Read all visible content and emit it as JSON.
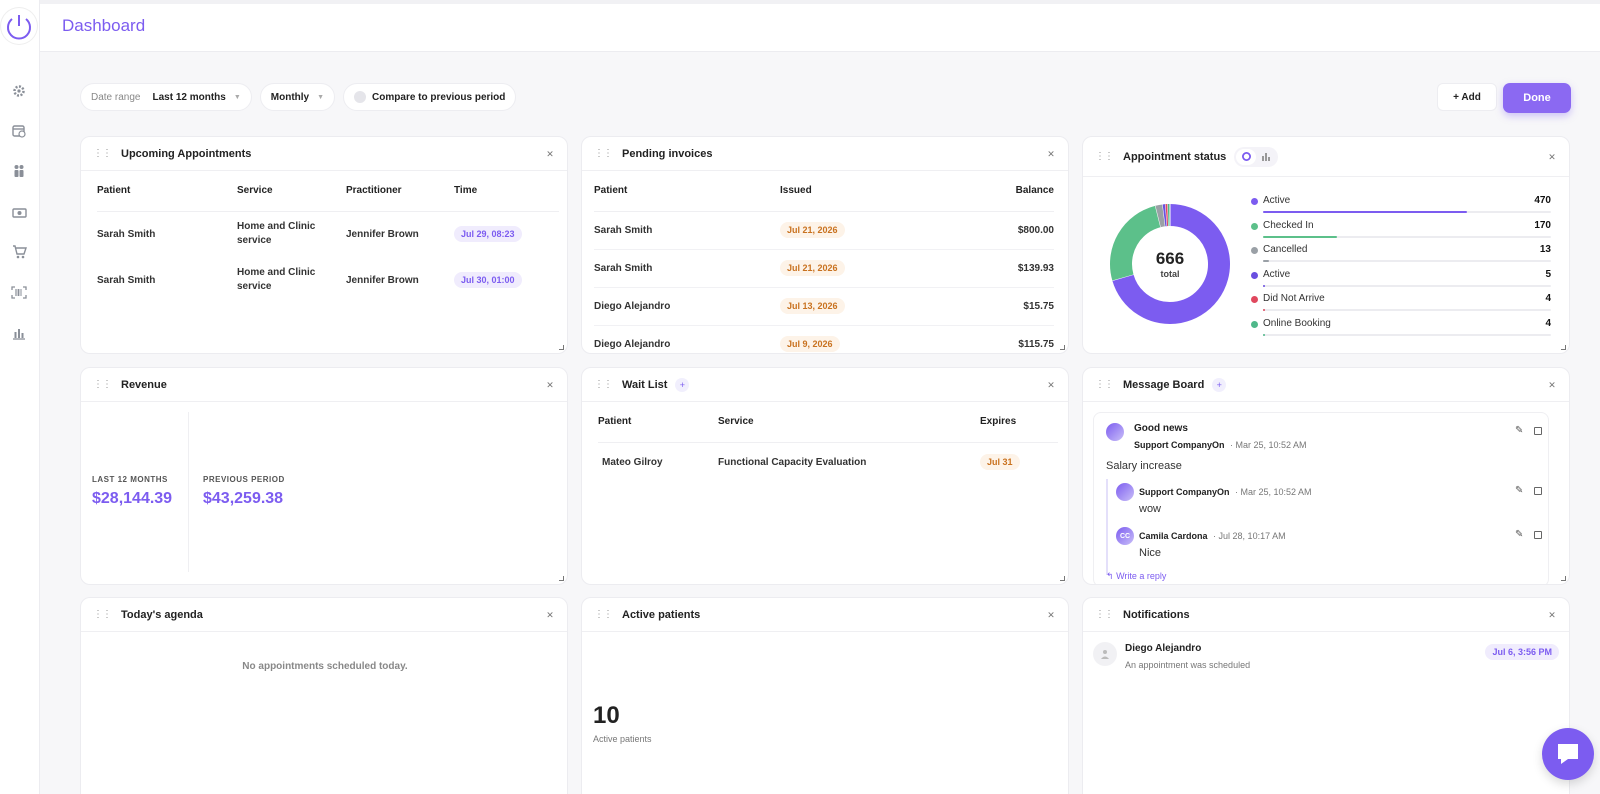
{
  "page": {
    "title": "Dashboard"
  },
  "filters": {
    "date_range_label": "Date range",
    "date_range_value": "Last 12 months",
    "interval_value": "Monthly",
    "compare_label": "Compare to previous period"
  },
  "actions": {
    "add_label": "+ Add",
    "done_label": "Done"
  },
  "sidebar": {
    "items": [
      {
        "icon": "gear-icon"
      },
      {
        "icon": "calendar-clock-icon"
      },
      {
        "icon": "people-icon"
      },
      {
        "icon": "money-icon"
      },
      {
        "icon": "cart-icon"
      },
      {
        "icon": "barcode-icon"
      },
      {
        "icon": "bar-chart-icon"
      }
    ]
  },
  "upcoming": {
    "title": "Upcoming Appointments",
    "columns": [
      "Patient",
      "Service",
      "Practitioner",
      "Time"
    ],
    "rows": [
      {
        "patient": "Sarah Smith",
        "service": "Home and Clinic service",
        "practitioner": "Jennifer Brown",
        "time": "Jul 29, 08:23"
      },
      {
        "patient": "Sarah Smith",
        "service": "Home and Clinic service",
        "practitioner": "Jennifer Brown",
        "time": "Jul 30, 01:00"
      }
    ]
  },
  "invoices": {
    "title": "Pending invoices",
    "columns": [
      "Patient",
      "Issued",
      "Balance"
    ],
    "rows": [
      {
        "patient": "Sarah Smith",
        "issued": "Jul 21, 2026",
        "balance": "$800.00"
      },
      {
        "patient": "Sarah Smith",
        "issued": "Jul 21, 2026",
        "balance": "$139.93"
      },
      {
        "patient": "Diego Alejandro",
        "issued": "Jul 13, 2026",
        "balance": "$15.75"
      },
      {
        "patient": "Diego Alejandro",
        "issued": "Jul 9, 2026",
        "balance": "$115.75"
      }
    ]
  },
  "status": {
    "title": "Appointment status",
    "total": "666",
    "total_label": "total",
    "items": [
      {
        "label": "Active",
        "value": 470,
        "color": "#7c5cf0"
      },
      {
        "label": "Checked In",
        "value": 170,
        "color": "#5cc08a"
      },
      {
        "label": "Cancelled",
        "value": 13,
        "color": "#9aa0a6"
      },
      {
        "label": "Active",
        "value": 5,
        "color": "#6a4fe0"
      },
      {
        "label": "Did Not Arrive",
        "value": 4,
        "color": "#e0485e"
      },
      {
        "label": "Online Booking",
        "value": 4,
        "color": "#4fb88a"
      }
    ]
  },
  "revenue": {
    "title": "Revenue",
    "current_label": "LAST 12 MONTHS",
    "current_value": "$28,144.39",
    "previous_label": "PREVIOUS PERIOD",
    "previous_value": "$43,259.38"
  },
  "waitlist": {
    "title": "Wait List",
    "columns": [
      "Patient",
      "Service",
      "Expires"
    ],
    "rows": [
      {
        "patient": "Mateo Gilroy",
        "service": "Functional Capacity Evaluation",
        "expires": "Jul 31"
      }
    ]
  },
  "messages": {
    "title": "Message Board",
    "post": {
      "title": "Good news",
      "author": "Support CompanyOn",
      "date": "· Mar 25, 10:52 AM",
      "body": "Salary increase"
    },
    "replies": [
      {
        "author": "Support CompanyOn",
        "date": "· Mar 25, 10:52 AM",
        "body": "wow",
        "initials": ""
      },
      {
        "author": "Camila Cardona",
        "date": "· Jul 28, 10:17 AM",
        "body": "Nice",
        "initials": "CC"
      }
    ],
    "write_reply": "Write a reply"
  },
  "agenda": {
    "title": "Today's agenda",
    "empty": "No appointments scheduled today."
  },
  "active": {
    "title": "Active patients",
    "count": "10",
    "label": "Active patients"
  },
  "notifications": {
    "title": "Notifications",
    "items": [
      {
        "name": "Diego Alejandro",
        "text": "An appointment was scheduled",
        "time": "Jul 6, 3:56 PM"
      }
    ]
  }
}
